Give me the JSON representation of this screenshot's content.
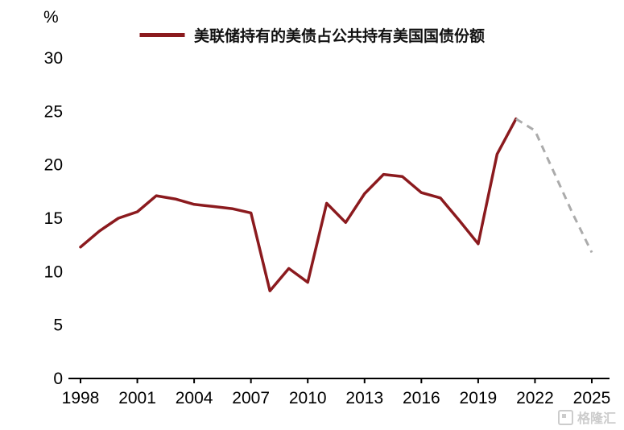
{
  "chart_data": {
    "type": "line",
    "title": "",
    "xlabel": "",
    "ylabel": "%",
    "xlim": [
      1998,
      2025
    ],
    "ylim": [
      0,
      30
    ],
    "yticks": [
      0,
      5,
      10,
      15,
      20,
      25,
      30
    ],
    "xticks": [
      1998,
      2001,
      2004,
      2007,
      2010,
      2013,
      2016,
      2019,
      2022,
      2025
    ],
    "grid": false,
    "legend_position": "top",
    "series": [
      {
        "name": "美联储持有的美债占公共持有美国国债份额",
        "style": "solid",
        "color": "#8B1A1E",
        "x": [
          1998,
          1999,
          2000,
          2001,
          2002,
          2003,
          2004,
          2005,
          2006,
          2007,
          2008,
          2009,
          2010,
          2011,
          2012,
          2013,
          2014,
          2015,
          2016,
          2017,
          2018,
          2019,
          2020,
          2021
        ],
        "values": [
          12.3,
          13.8,
          15.0,
          15.6,
          17.1,
          16.8,
          16.3,
          16.1,
          15.9,
          15.5,
          8.2,
          10.3,
          9.0,
          16.4,
          14.6,
          17.3,
          19.1,
          18.9,
          17.4,
          16.9,
          14.8,
          12.6,
          21.0,
          24.3
        ]
      },
      {
        "name": "",
        "style": "dashed",
        "color": "#ABABAB",
        "x": [
          2021,
          2022,
          2023,
          2024,
          2025
        ],
        "values": [
          24.3,
          23.2,
          19.3,
          15.4,
          11.8
        ]
      }
    ]
  },
  "watermark": {
    "text": "格隆汇"
  }
}
